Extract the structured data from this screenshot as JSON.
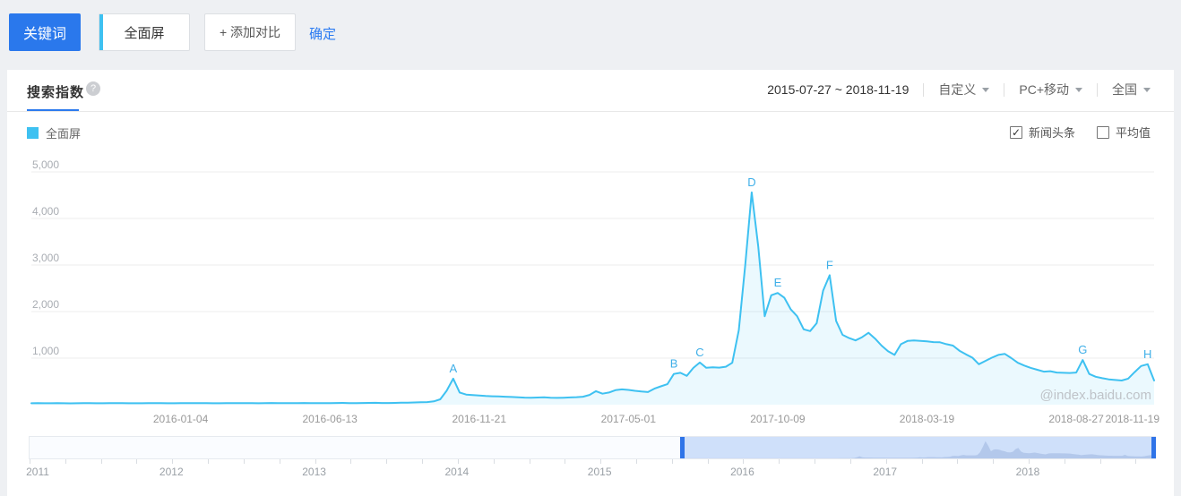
{
  "toolbar": {
    "keyword_label": "关键词",
    "keyword_value": "全面屏",
    "add_compare_label": "+ 添加对比",
    "confirm_label": "确定"
  },
  "panel": {
    "tab_label": "搜索指数",
    "help_icon": "?",
    "date_range": "2015-07-27 ~ 2018-11-19",
    "filters": [
      {
        "label": "自定义"
      },
      {
        "label": "PC+移动"
      },
      {
        "label": "全国"
      }
    ],
    "legend": {
      "series_label": "全面屏",
      "color": "#3ec1f1"
    },
    "options": [
      {
        "label": "新闻头条",
        "checked": true
      },
      {
        "label": "平均值",
        "checked": false
      }
    ],
    "watermark": "@index.baidu.com"
  },
  "chart_data": {
    "type": "area",
    "title": "搜索指数",
    "series_name": "全面屏",
    "x_start_date": "2015-07-27",
    "x_end_date": "2018-11-19",
    "x_unit": "week",
    "ylim": [
      0,
      5000
    ],
    "y_ticks": [
      1000,
      2000,
      3000,
      4000,
      5000
    ],
    "grid": true,
    "legend_position": "top-left",
    "line_color": "#3ec1f1",
    "fill_color": "rgba(62,193,241,0.10)",
    "label_color": "#3fafe8",
    "x_tick_labels": [
      "2016-01-04",
      "2016-06-13",
      "2016-11-21",
      "2017-05-01",
      "2017-10-09",
      "2018-03-19",
      "2018-08-27",
      "2018-11-19"
    ],
    "x_tick_weeks": [
      23,
      46,
      69,
      92,
      115,
      138,
      161,
      173
    ],
    "values": [
      30,
      32,
      30,
      31,
      33,
      30,
      29,
      31,
      34,
      32,
      30,
      31,
      33,
      35,
      32,
      30,
      31,
      30,
      32,
      34,
      33,
      31,
      30,
      32,
      35,
      33,
      32,
      34,
      31,
      30,
      32,
      33,
      35,
      34,
      32,
      31,
      33,
      36,
      34,
      32,
      33,
      35,
      37,
      34,
      33,
      32,
      34,
      36,
      38,
      35,
      34,
      36,
      38,
      40,
      37,
      36,
      38,
      42,
      45,
      48,
      52,
      56,
      72,
      115,
      300,
      560,
      262,
      218,
      206,
      196,
      186,
      180,
      177,
      172,
      166,
      158,
      152,
      150,
      153,
      158,
      150,
      146,
      150,
      156,
      162,
      172,
      210,
      290,
      236,
      262,
      312,
      328,
      318,
      298,
      283,
      272,
      345,
      395,
      440,
      660,
      685,
      620,
      790,
      905,
      792,
      803,
      796,
      815,
      900,
      1600,
      3000,
      4560,
      3400,
      1900,
      2350,
      2400,
      2300,
      2050,
      1900,
      1620,
      1580,
      1750,
      2450,
      2780,
      1800,
      1500,
      1430,
      1380,
      1450,
      1545,
      1420,
      1270,
      1150,
      1070,
      1300,
      1370,
      1380,
      1370,
      1360,
      1345,
      1340,
      1300,
      1270,
      1160,
      1080,
      1010,
      870,
      940,
      1010,
      1070,
      1090,
      1000,
      900,
      840,
      790,
      750,
      710,
      720,
      690,
      685,
      680,
      690,
      960,
      660,
      600,
      570,
      545,
      530,
      520,
      560,
      700,
      830,
      870,
      520
    ],
    "annotations": [
      {
        "label": "A",
        "week": 65,
        "value": 560
      },
      {
        "label": "B",
        "week": 99,
        "value": 660
      },
      {
        "label": "C",
        "week": 103,
        "value": 905
      },
      {
        "label": "D",
        "week": 111,
        "value": 4560
      },
      {
        "label": "E",
        "week": 115,
        "value": 2400
      },
      {
        "label": "F",
        "week": 123,
        "value": 2780
      },
      {
        "label": "G",
        "week": 162,
        "value": 960
      },
      {
        "label": "H",
        "week": 172,
        "value": 870
      }
    ]
  },
  "timeline": {
    "years": [
      "2011",
      "2012",
      "2013",
      "2014",
      "2015",
      "2016",
      "2017",
      "2018"
    ],
    "range_start_year": 2011.0,
    "range_end_year": 2018.885,
    "selection_start_year": 2015.57,
    "selection_end_year": 2018.885,
    "handle_color": "#2f74e8",
    "highlight_color": "#cfe0fa"
  }
}
